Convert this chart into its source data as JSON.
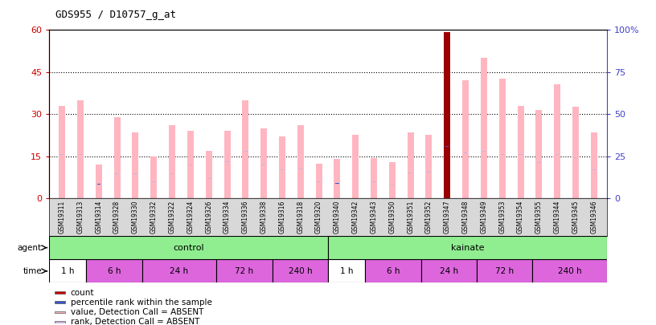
{
  "title": "GDS955 / D10757_g_at",
  "samples": [
    "GSM19311",
    "GSM19313",
    "GSM19314",
    "GSM19328",
    "GSM19330",
    "GSM19332",
    "GSM19322",
    "GSM19324",
    "GSM19326",
    "GSM19334",
    "GSM19336",
    "GSM19338",
    "GSM19316",
    "GSM19318",
    "GSM19320",
    "GSM19340",
    "GSM19342",
    "GSM19343",
    "GSM19350",
    "GSM19351",
    "GSM19352",
    "GSM19347",
    "GSM19348",
    "GSM19349",
    "GSM19353",
    "GSM19354",
    "GSM19355",
    "GSM19344",
    "GSM19345",
    "GSM19346"
  ],
  "value_bars": [
    33.0,
    35.0,
    12.0,
    29.0,
    23.5,
    15.0,
    26.0,
    24.0,
    17.0,
    24.0,
    35.0,
    25.0,
    22.0,
    26.0,
    12.5,
    14.0,
    22.5,
    14.5,
    13.0,
    23.5,
    22.5,
    59.0,
    42.0,
    50.0,
    42.5,
    33.0,
    31.5,
    40.5,
    32.5,
    23.5
  ],
  "rank_values": [
    26.0,
    26.0,
    8.5,
    14.5,
    14.5,
    10.0,
    14.5,
    20.0,
    12.0,
    22.0,
    28.0,
    20.0,
    17.0,
    17.5,
    10.0,
    9.0,
    14.0,
    10.0,
    8.5,
    15.0,
    15.5,
    31.0,
    27.0,
    28.0,
    26.0,
    26.0,
    21.5,
    26.0,
    24.0,
    17.0
  ],
  "is_dark_red": [
    false,
    false,
    false,
    false,
    false,
    false,
    false,
    false,
    false,
    false,
    false,
    false,
    false,
    false,
    false,
    false,
    false,
    false,
    false,
    false,
    false,
    true,
    false,
    false,
    false,
    false,
    false,
    false,
    false,
    false
  ],
  "is_blue_rank": [
    false,
    false,
    true,
    false,
    false,
    false,
    false,
    false,
    false,
    false,
    false,
    false,
    false,
    false,
    false,
    true,
    true,
    false,
    false,
    false,
    false,
    true,
    false,
    false,
    false,
    false,
    false,
    false,
    false,
    false
  ],
  "ylim_left": [
    0,
    60
  ],
  "ylim_right": [
    0,
    100
  ],
  "yticks_left": [
    0,
    15,
    30,
    45,
    60
  ],
  "yticks_right": [
    0,
    25,
    50,
    75,
    100
  ],
  "value_bar_color": "#ffb6c1",
  "rank_marker_color": "#c8b4d8",
  "dark_red_color": "#9b0000",
  "blue_rank_color": "#3355cc",
  "bg_color": "#ffffff",
  "left_axis_color": "#cc0000",
  "right_axis_color": "#4040cc",
  "bar_width": 0.35,
  "legend_items": [
    {
      "label": "count",
      "color": "#cc0000"
    },
    {
      "label": "percentile rank within the sample",
      "color": "#3355cc"
    },
    {
      "label": "value, Detection Call = ABSENT",
      "color": "#ffb6c1"
    },
    {
      "label": "rank, Detection Call = ABSENT",
      "color": "#c8b4d8"
    }
  ],
  "time_groups": [
    {
      "label": "1 h",
      "start": 0,
      "end": 2,
      "color": "white"
    },
    {
      "label": "6 h",
      "start": 2,
      "end": 5,
      "color": "#dd66dd"
    },
    {
      "label": "24 h",
      "start": 5,
      "end": 9,
      "color": "#dd66dd"
    },
    {
      "label": "72 h",
      "start": 9,
      "end": 12,
      "color": "#dd66dd"
    },
    {
      "label": "240 h",
      "start": 12,
      "end": 15,
      "color": "#dd66dd"
    },
    {
      "label": "1 h",
      "start": 15,
      "end": 17,
      "color": "white"
    },
    {
      "label": "6 h",
      "start": 17,
      "end": 20,
      "color": "#dd66dd"
    },
    {
      "label": "24 h",
      "start": 20,
      "end": 23,
      "color": "#dd66dd"
    },
    {
      "label": "72 h",
      "start": 23,
      "end": 26,
      "color": "#dd66dd"
    },
    {
      "label": "240 h",
      "start": 26,
      "end": 30,
      "color": "#dd66dd"
    }
  ]
}
